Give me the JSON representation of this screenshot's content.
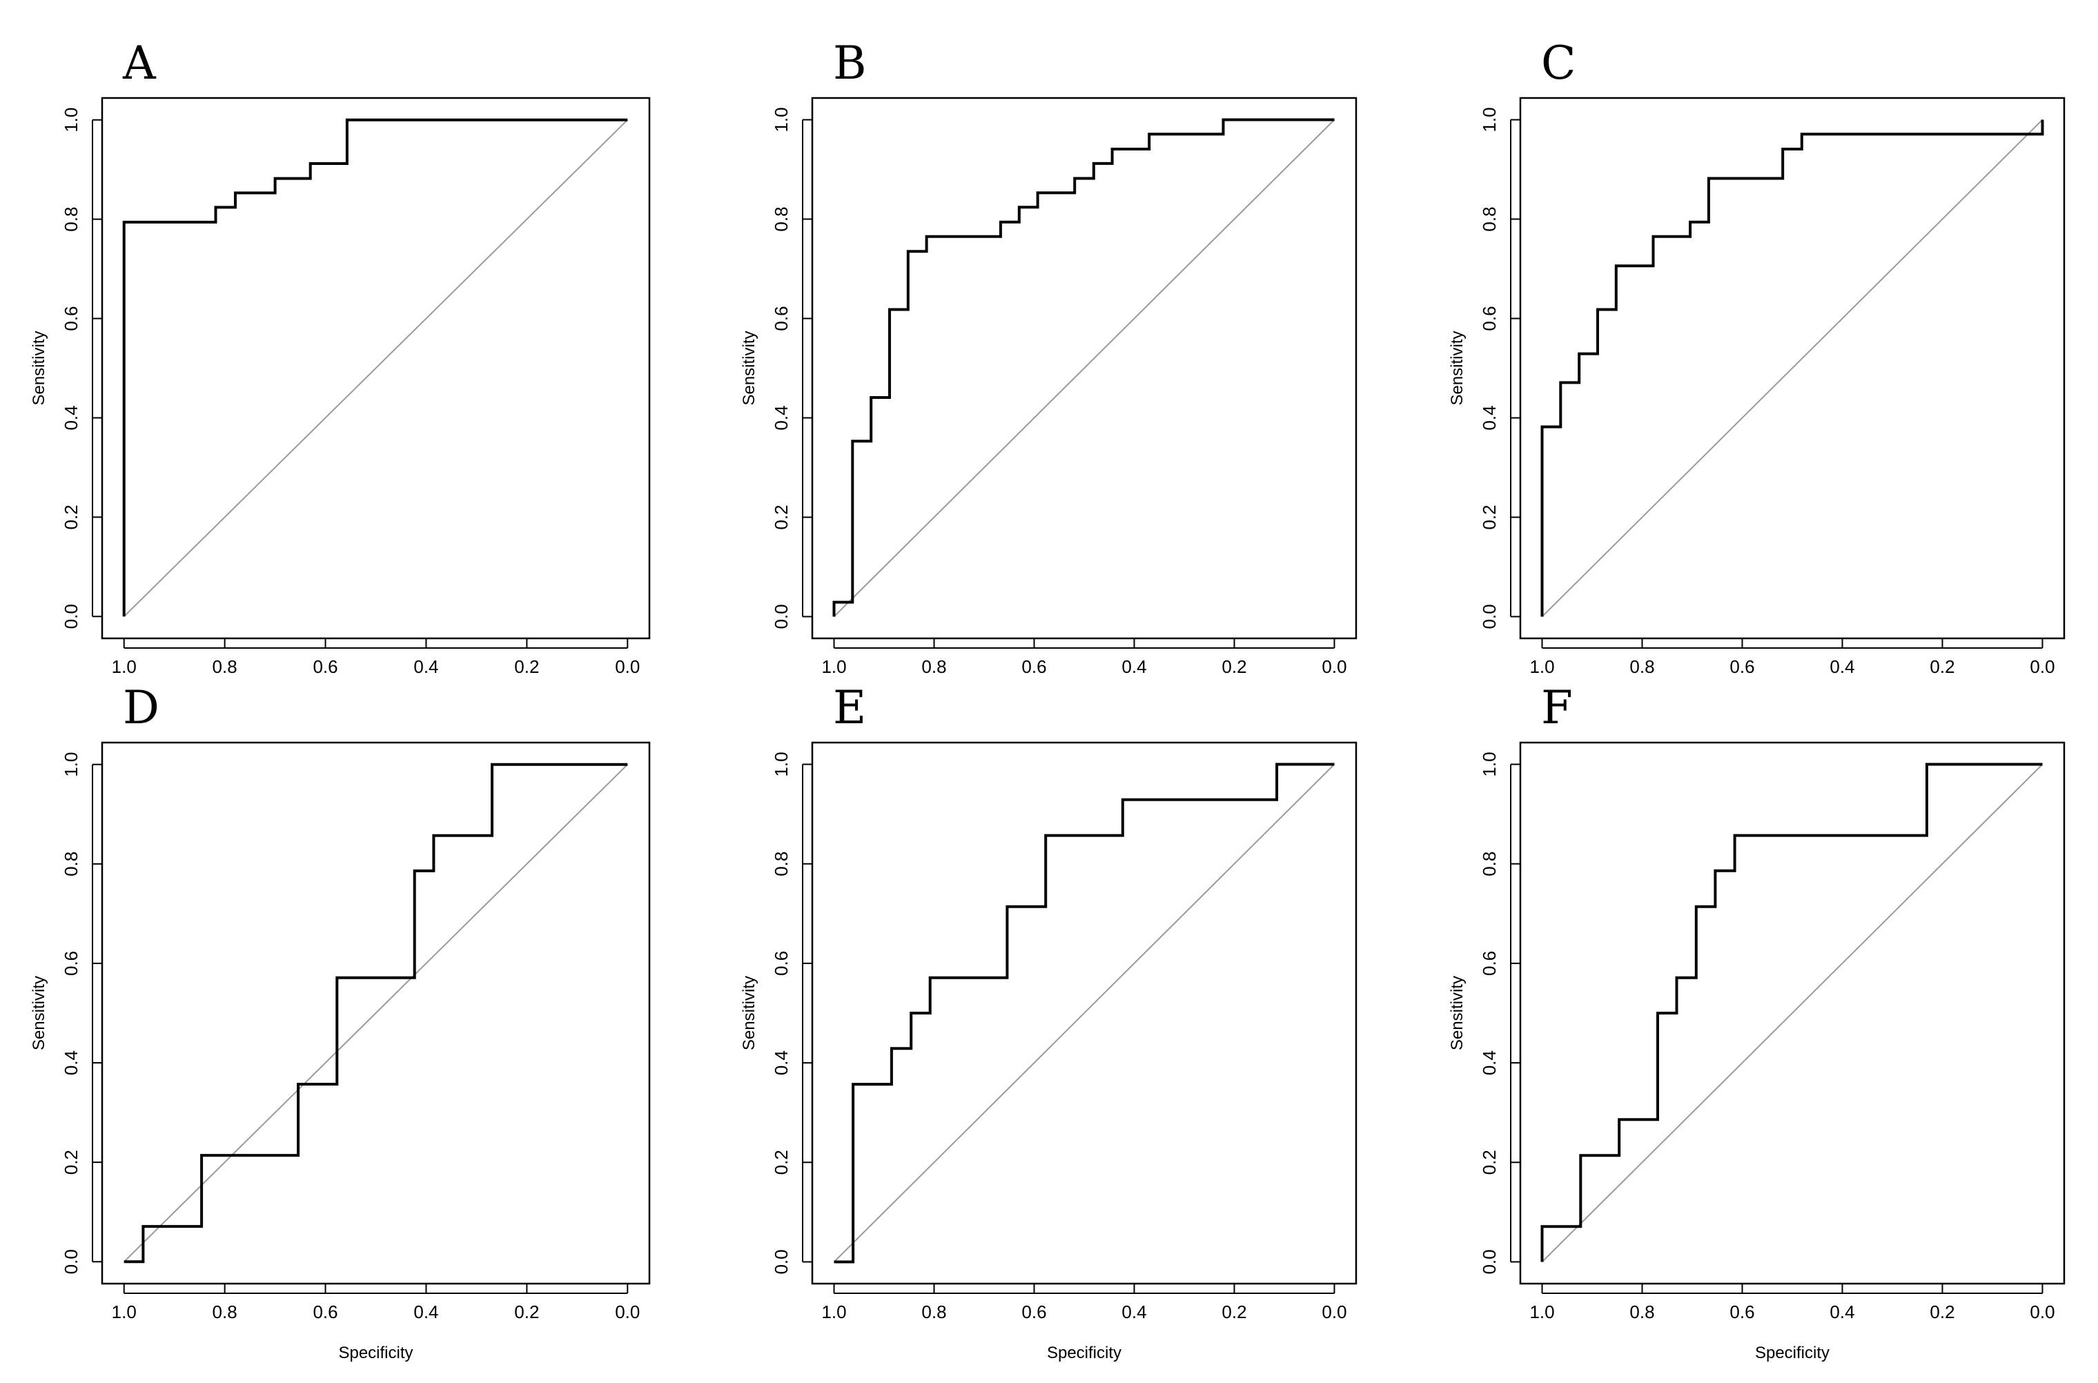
{
  "chart_data": [
    {
      "type": "line",
      "panel": "A",
      "xlabel": "",
      "ylabel": "Sensitivity",
      "xlim": [
        1.0,
        0.0
      ],
      "ylim": [
        0.0,
        1.0
      ],
      "xticks": [
        "1.0",
        "0.8",
        "0.6",
        "0.4",
        "0.2",
        "0.0"
      ],
      "yticks": [
        "0.0",
        "0.2",
        "0.4",
        "0.6",
        "0.8",
        "1.0"
      ],
      "grid": false,
      "reference_line": true,
      "roc": {
        "specificity": [
          1.0,
          1.0,
          0.818,
          0.818,
          0.779,
          0.779,
          0.7,
          0.7,
          0.63,
          0.63,
          0.557,
          0.557,
          0.0
        ],
        "sensitivity": [
          0.0,
          0.794,
          0.794,
          0.824,
          0.824,
          0.853,
          0.853,
          0.882,
          0.882,
          0.912,
          0.912,
          1.0,
          1.0
        ]
      }
    },
    {
      "type": "line",
      "panel": "B",
      "xlabel": "",
      "ylabel": "Sensitivity",
      "xlim": [
        1.0,
        0.0
      ],
      "ylim": [
        0.0,
        1.0
      ],
      "xticks": [
        "1.0",
        "0.8",
        "0.6",
        "0.4",
        "0.2",
        "0.0"
      ],
      "yticks": [
        "0.0",
        "0.2",
        "0.4",
        "0.6",
        "0.8",
        "1.0"
      ],
      "grid": false,
      "reference_line": true,
      "roc": {
        "specificity": [
          1.0,
          1.0,
          0.963,
          0.963,
          0.926,
          0.926,
          0.889,
          0.889,
          0.852,
          0.852,
          0.815,
          0.815,
          0.667,
          0.667,
          0.63,
          0.63,
          0.593,
          0.593,
          0.519,
          0.519,
          0.481,
          0.481,
          0.444,
          0.444,
          0.37,
          0.37,
          0.222,
          0.222,
          0.0
        ],
        "sensitivity": [
          0.0,
          0.029,
          0.029,
          0.353,
          0.353,
          0.441,
          0.441,
          0.618,
          0.618,
          0.735,
          0.735,
          0.765,
          0.765,
          0.794,
          0.794,
          0.824,
          0.824,
          0.853,
          0.853,
          0.882,
          0.882,
          0.912,
          0.912,
          0.941,
          0.941,
          0.971,
          0.971,
          1.0,
          1.0
        ]
      }
    },
    {
      "type": "line",
      "panel": "C",
      "xlabel": "",
      "ylabel": "Sensitivity",
      "xlim": [
        1.0,
        0.0
      ],
      "ylim": [
        0.0,
        1.0
      ],
      "xticks": [
        "1.0",
        "0.8",
        "0.6",
        "0.4",
        "0.2",
        "0.0"
      ],
      "yticks": [
        "0.0",
        "0.2",
        "0.4",
        "0.6",
        "0.8",
        "1.0"
      ],
      "grid": false,
      "reference_line": true,
      "roc": {
        "specificity": [
          1.0,
          1.0,
          0.963,
          0.963,
          0.926,
          0.926,
          0.889,
          0.889,
          0.852,
          0.852,
          0.778,
          0.778,
          0.704,
          0.704,
          0.667,
          0.667,
          0.519,
          0.519,
          0.481,
          0.481,
          0.0,
          0.0
        ],
        "sensitivity": [
          0.0,
          0.382,
          0.382,
          0.471,
          0.471,
          0.529,
          0.529,
          0.618,
          0.618,
          0.706,
          0.706,
          0.765,
          0.765,
          0.794,
          0.794,
          0.882,
          0.882,
          0.941,
          0.941,
          0.971,
          0.971,
          1.0
        ]
      }
    },
    {
      "type": "line",
      "panel": "D",
      "xlabel": "Specificity",
      "ylabel": "Sensitivity",
      "xlim": [
        1.0,
        0.0
      ],
      "ylim": [
        0.0,
        1.0
      ],
      "xticks": [
        "1.0",
        "0.8",
        "0.6",
        "0.4",
        "0.2",
        "0.0"
      ],
      "yticks": [
        "0.0",
        "0.2",
        "0.4",
        "0.6",
        "0.8",
        "1.0"
      ],
      "grid": false,
      "reference_line": true,
      "roc": {
        "specificity": [
          1.0,
          0.962,
          0.962,
          0.846,
          0.846,
          0.654,
          0.654,
          0.577,
          0.577,
          0.423,
          0.423,
          0.385,
          0.385,
          0.269,
          0.269,
          0.0
        ],
        "sensitivity": [
          0.0,
          0.0,
          0.071,
          0.071,
          0.214,
          0.214,
          0.357,
          0.357,
          0.571,
          0.571,
          0.786,
          0.786,
          0.857,
          0.857,
          1.0,
          1.0
        ]
      }
    },
    {
      "type": "line",
      "panel": "E",
      "xlabel": "Specificity",
      "ylabel": "Sensitivity",
      "xlim": [
        1.0,
        0.0
      ],
      "ylim": [
        0.0,
        1.0
      ],
      "xticks": [
        "1.0",
        "0.8",
        "0.6",
        "0.4",
        "0.2",
        "0.0"
      ],
      "yticks": [
        "0.0",
        "0.2",
        "0.4",
        "0.6",
        "0.8",
        "1.0"
      ],
      "grid": false,
      "reference_line": true,
      "roc": {
        "specificity": [
          1.0,
          0.962,
          0.962,
          0.885,
          0.885,
          0.846,
          0.846,
          0.808,
          0.808,
          0.654,
          0.654,
          0.577,
          0.577,
          0.423,
          0.423,
          0.115,
          0.115,
          0.0
        ],
        "sensitivity": [
          0.0,
          0.0,
          0.357,
          0.357,
          0.429,
          0.429,
          0.5,
          0.5,
          0.571,
          0.571,
          0.714,
          0.714,
          0.857,
          0.857,
          0.929,
          0.929,
          1.0,
          1.0
        ]
      }
    },
    {
      "type": "line",
      "panel": "F",
      "xlabel": "Specificity",
      "ylabel": "Sensitivity",
      "xlim": [
        1.0,
        0.0
      ],
      "ylim": [
        0.0,
        1.0
      ],
      "xticks": [
        "1.0",
        "0.8",
        "0.6",
        "0.4",
        "0.2",
        "0.0"
      ],
      "yticks": [
        "0.0",
        "0.2",
        "0.4",
        "0.6",
        "0.8",
        "1.0"
      ],
      "grid": false,
      "reference_line": true,
      "roc": {
        "specificity": [
          1.0,
          1.0,
          0.923,
          0.923,
          0.846,
          0.846,
          0.769,
          0.769,
          0.731,
          0.731,
          0.692,
          0.692,
          0.654,
          0.654,
          0.615,
          0.615,
          0.231,
          0.231,
          0.0
        ],
        "sensitivity": [
          0.0,
          0.071,
          0.071,
          0.214,
          0.214,
          0.286,
          0.286,
          0.5,
          0.5,
          0.571,
          0.571,
          0.714,
          0.714,
          0.786,
          0.786,
          0.857,
          0.857,
          1.0,
          1.0
        ]
      }
    }
  ],
  "colors": {
    "roc_line": "#000000",
    "reference_line": "#9a9a9a",
    "frame": "#000000"
  }
}
